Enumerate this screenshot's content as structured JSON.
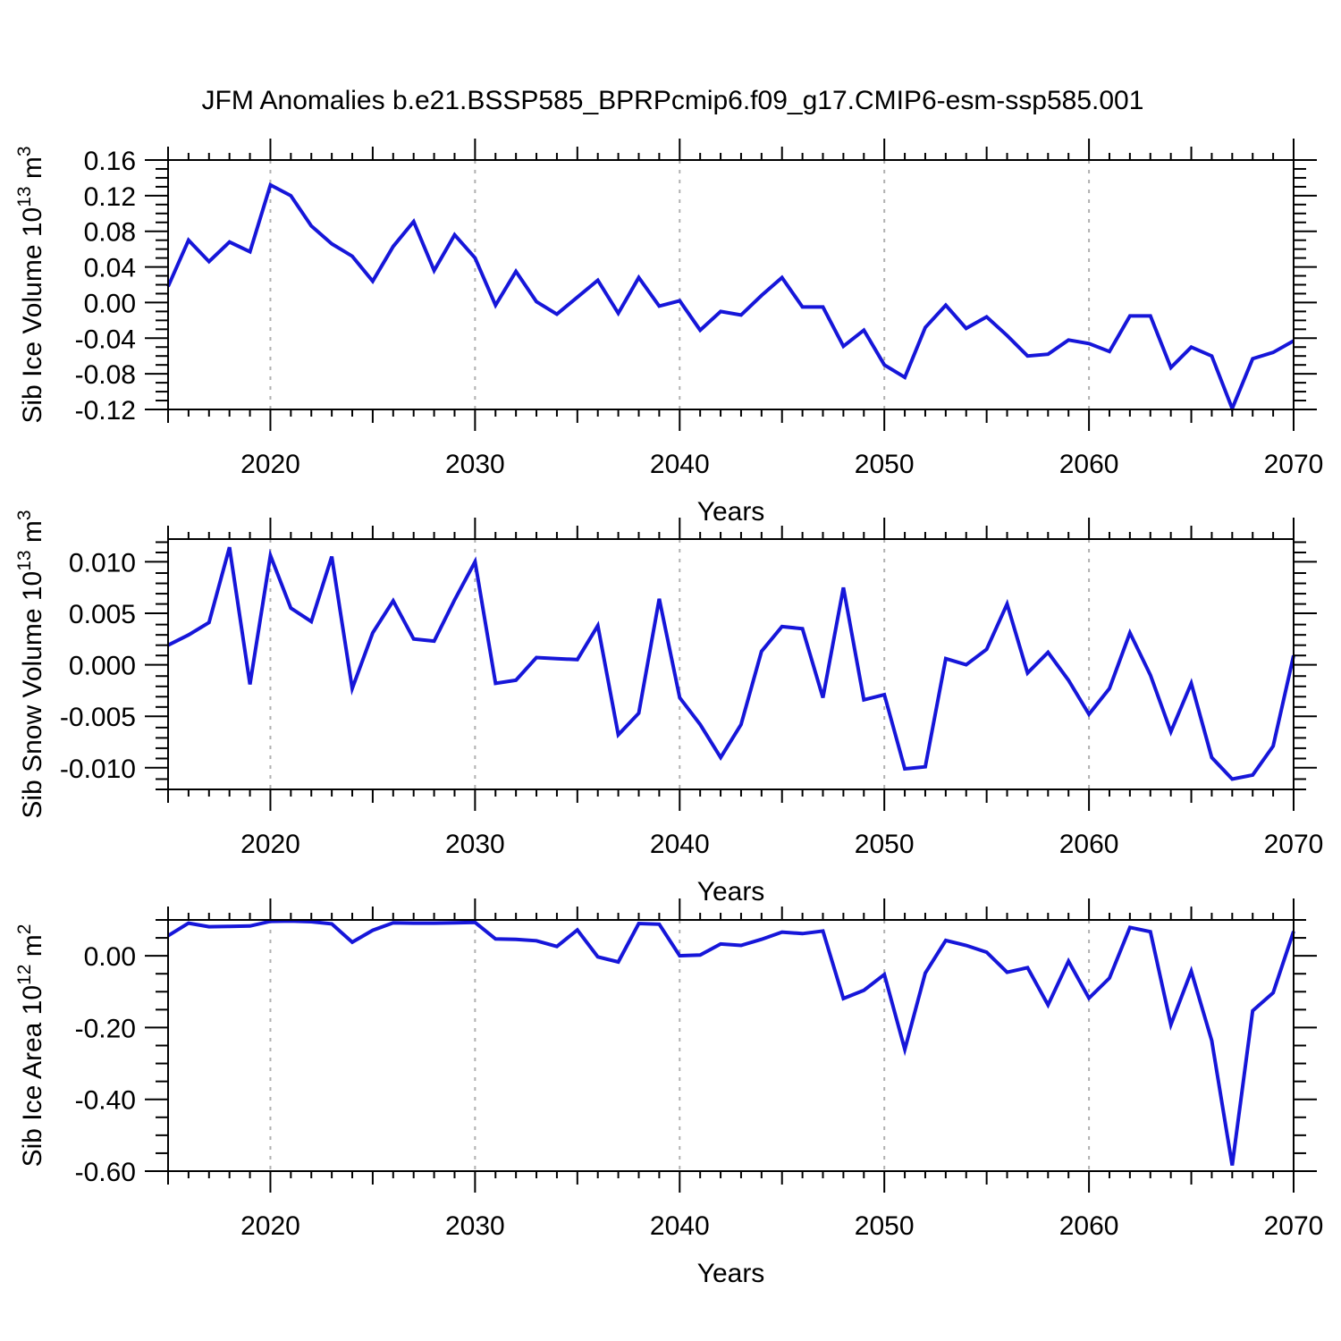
{
  "title": "JFM Anomalies b.e21.BSSP585_BPRPcmip6.f09_g17.CMIP6-esm-ssp585.001",
  "colors": {
    "line": "#1616d9",
    "grid": "#b0b0b0",
    "axis": "#000000",
    "background": "#ffffff"
  },
  "x_axis": {
    "label": "Years",
    "min_year": 2015,
    "max_year": 2070,
    "major_years": [
      2020,
      2030,
      2040,
      2050,
      2060,
      2070
    ],
    "major_labels": [
      "2020",
      "2030",
      "2040",
      "2050",
      "2060",
      "2070"
    ],
    "grid_years": [
      2020,
      2030,
      2040,
      2050,
      2060
    ]
  },
  "chart_data": [
    {
      "type": "line",
      "id": "sib-ice-volume",
      "ylabel_text": "Sib Ice Volume 10¹³ m³",
      "ylabel_parts": [
        {
          "t": "Sib Ice Volume 10"
        },
        {
          "t": "13",
          "sup": true
        },
        {
          "t": " m"
        },
        {
          "t": "3",
          "sup": true
        }
      ],
      "xlabel": "Years",
      "ylim": [
        -0.12,
        0.16
      ],
      "yticks": [
        0.16,
        0.12,
        0.08,
        0.04,
        0.0,
        -0.04,
        -0.08,
        -0.12
      ],
      "ytick_labels": [
        "0.16",
        "0.12",
        "0.08",
        "0.04",
        "0.00",
        "-0.04",
        "-0.08",
        "-0.12"
      ],
      "yminor_step": 0.01,
      "grid": "x-dashed",
      "legend": "none",
      "x": [
        2015,
        2016,
        2017,
        2018,
        2019,
        2020,
        2021,
        2022,
        2023,
        2024,
        2025,
        2026,
        2027,
        2028,
        2029,
        2030,
        2031,
        2032,
        2033,
        2034,
        2035,
        2036,
        2037,
        2038,
        2039,
        2040,
        2041,
        2042,
        2043,
        2044,
        2045,
        2046,
        2047,
        2048,
        2049,
        2050,
        2051,
        2052,
        2053,
        2054,
        2055,
        2056,
        2057,
        2058,
        2059,
        2060,
        2061,
        2062,
        2063,
        2064,
        2065,
        2066,
        2067,
        2068,
        2069,
        2070
      ],
      "values": [
        0.018,
        0.07,
        0.046,
        0.068,
        0.057,
        0.132,
        0.12,
        0.086,
        0.066,
        0.052,
        0.024,
        0.063,
        0.091,
        0.036,
        0.076,
        0.05,
        -0.003,
        0.035,
        0.001,
        -0.013,
        0.006,
        0.025,
        -0.012,
        0.028,
        -0.004,
        0.002,
        -0.031,
        -0.01,
        -0.014,
        0.008,
        0.028,
        -0.005,
        -0.005,
        -0.049,
        -0.031,
        -0.07,
        -0.084,
        -0.028,
        -0.003,
        -0.029,
        -0.016,
        -0.037,
        -0.06,
        -0.058,
        -0.042,
        -0.046,
        -0.055,
        -0.015,
        -0.015,
        -0.073,
        -0.05,
        -0.06,
        -0.119,
        -0.063,
        -0.056,
        -0.043
      ]
    },
    {
      "type": "line",
      "id": "sib-snow-volume",
      "ylabel_text": "Sib Snow Volume 10¹³ m³",
      "ylabel_parts": [
        {
          "t": "Sib Snow Volume 10"
        },
        {
          "t": "13",
          "sup": true
        },
        {
          "t": " m"
        },
        {
          "t": "3",
          "sup": true
        }
      ],
      "xlabel": "Years",
      "ylim": [
        -0.0121,
        0.0122
      ],
      "yticks": [
        0.01,
        0.005,
        0.0,
        -0.005,
        -0.01
      ],
      "ytick_labels": [
        "0.010",
        "0.005",
        "0.000",
        "-0.005",
        "-0.010"
      ],
      "yminor_step": 0.001,
      "grid": "x-dashed",
      "legend": "none",
      "x": [
        2015,
        2016,
        2017,
        2018,
        2019,
        2020,
        2021,
        2022,
        2023,
        2024,
        2025,
        2026,
        2027,
        2028,
        2029,
        2030,
        2031,
        2032,
        2033,
        2034,
        2035,
        2036,
        2037,
        2038,
        2039,
        2040,
        2041,
        2042,
        2043,
        2044,
        2045,
        2046,
        2047,
        2048,
        2049,
        2050,
        2051,
        2052,
        2053,
        2054,
        2055,
        2056,
        2057,
        2058,
        2059,
        2060,
        2061,
        2062,
        2063,
        2064,
        2065,
        2066,
        2067,
        2068,
        2069,
        2070
      ],
      "values": [
        0.0019,
        0.0029,
        0.0041,
        0.0114,
        -0.0019,
        0.0106,
        0.0055,
        0.0042,
        0.0105,
        -0.0023,
        0.0031,
        0.0062,
        0.0025,
        0.0023,
        0.0063,
        0.01,
        -0.0018,
        -0.0015,
        0.0007,
        0.0006,
        0.0005,
        0.0038,
        -0.0068,
        -0.0047,
        0.0064,
        -0.0032,
        -0.0058,
        -0.009,
        -0.0058,
        0.0013,
        0.0037,
        0.0035,
        -0.0032,
        0.0075,
        -0.0034,
        -0.0029,
        -0.0101,
        -0.0099,
        0.0006,
        0.0,
        0.0015,
        0.0059,
        -0.0008,
        0.0012,
        -0.0015,
        -0.0048,
        -0.0023,
        0.0031,
        -0.001,
        -0.0065,
        -0.0018,
        -0.009,
        -0.0111,
        -0.0107,
        -0.0079,
        0.0009
      ]
    },
    {
      "type": "line",
      "id": "sib-ice-area",
      "ylabel_text": "Sib Ice Area 10¹² m²",
      "ylabel_parts": [
        {
          "t": "Sib Ice Area 10"
        },
        {
          "t": "12",
          "sup": true
        },
        {
          "t": " m"
        },
        {
          "t": "2",
          "sup": true
        }
      ],
      "xlabel": "Years",
      "ylim": [
        -0.6,
        0.1
      ],
      "yticks": [
        0.0,
        -0.2,
        -0.4,
        -0.6
      ],
      "ytick_labels": [
        "0.00",
        "-0.20",
        "-0.40",
        "-0.60"
      ],
      "yminor_step": 0.05,
      "grid": "x-dashed",
      "legend": "none",
      "x": [
        2015,
        2016,
        2017,
        2018,
        2019,
        2020,
        2021,
        2022,
        2023,
        2024,
        2025,
        2026,
        2027,
        2028,
        2029,
        2030,
        2031,
        2032,
        2033,
        2034,
        2035,
        2036,
        2037,
        2038,
        2039,
        2040,
        2041,
        2042,
        2043,
        2044,
        2045,
        2046,
        2047,
        2048,
        2049,
        2050,
        2051,
        2052,
        2053,
        2054,
        2055,
        2056,
        2057,
        2058,
        2059,
        2060,
        2061,
        2062,
        2063,
        2064,
        2065,
        2066,
        2067,
        2068,
        2069,
        2070
      ],
      "values": [
        0.056,
        0.091,
        0.081,
        0.082,
        0.083,
        0.096,
        0.097,
        0.095,
        0.089,
        0.038,
        0.071,
        0.092,
        0.091,
        0.091,
        0.092,
        0.093,
        0.047,
        0.046,
        0.042,
        0.026,
        0.072,
        -0.003,
        -0.017,
        0.09,
        0.088,
        0.0,
        0.002,
        0.033,
        0.029,
        0.046,
        0.066,
        0.062,
        0.069,
        -0.119,
        -0.096,
        -0.052,
        -0.261,
        -0.048,
        0.043,
        0.029,
        0.01,
        -0.046,
        -0.033,
        -0.137,
        -0.015,
        -0.118,
        -0.062,
        0.079,
        0.067,
        -0.192,
        -0.043,
        -0.236,
        -0.584,
        -0.153,
        -0.103,
        0.068
      ]
    }
  ]
}
